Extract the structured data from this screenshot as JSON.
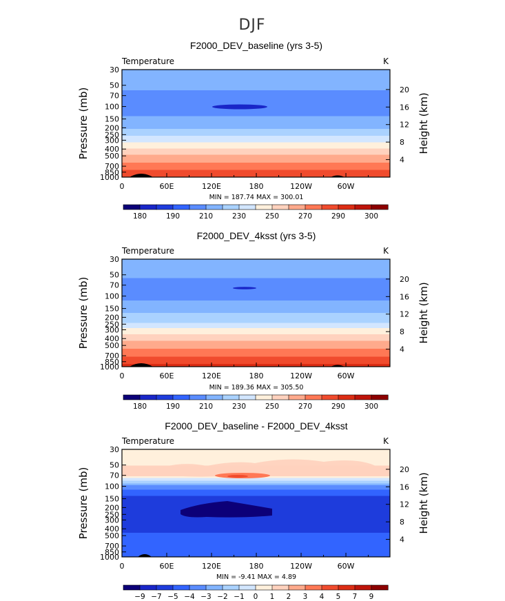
{
  "figure": {
    "suptitle": "DJF"
  },
  "chart_data": [
    {
      "type": "heatmap",
      "title": "F2000_DEV_baseline (yrs 3-5)",
      "left_label": "Temperature",
      "units": "K",
      "ylabel": "Pressure (mb)",
      "ylabel_right": "Height (km)",
      "x_ticks": [
        "0",
        "60E",
        "120E",
        "180",
        "120W",
        "60W"
      ],
      "xlim": [
        0,
        359
      ],
      "y_ticks": [
        "30",
        "50",
        "70",
        "100",
        "150",
        "200",
        "250",
        "300",
        "400",
        "500",
        "700",
        "850",
        "1000"
      ],
      "y_ticks_right": [
        "20",
        "16",
        "12",
        "8",
        "4"
      ],
      "ylim": [
        1000,
        30
      ],
      "y_scale": "log",
      "min_max_label": "MIN = 187.74   MAX = 300.01",
      "min": 187.74,
      "max": 300.01,
      "colorbar_labels": [
        "180",
        "190",
        "210",
        "230",
        "250",
        "270",
        "290",
        "300"
      ],
      "levels": [
        180,
        185,
        190,
        200,
        210,
        220,
        230,
        240,
        250,
        260,
        270,
        280,
        290,
        295,
        300
      ],
      "colors": [
        "#0c0078",
        "#1926c8",
        "#1e3cdc",
        "#3264ff",
        "#5a8cff",
        "#82b4ff",
        "#aad2ff",
        "#d2e6ff",
        "#fff0dc",
        "#ffd2be",
        "#ffaa8c",
        "#ff7855",
        "#f04b2d",
        "#dc2d14",
        "#be140a",
        "#8c0000"
      ],
      "profile": [
        {
          "p": 30,
          "v": 219
        },
        {
          "p": 50,
          "v": 213
        },
        {
          "p": 70,
          "v": 206
        },
        {
          "p": 100,
          "v": 204
        },
        {
          "p": 150,
          "v": 212
        },
        {
          "p": 200,
          "v": 219
        },
        {
          "p": 250,
          "v": 228
        },
        {
          "p": 300,
          "v": 238
        },
        {
          "p": 400,
          "v": 252
        },
        {
          "p": 500,
          "v": 262
        },
        {
          "p": 700,
          "v": 275
        },
        {
          "p": 850,
          "v": 283
        },
        {
          "p": 1000,
          "v": 290
        }
      ]
    },
    {
      "type": "heatmap",
      "title": "F2000_DEV_4ksst (yrs 3-5)",
      "left_label": "Temperature",
      "units": "K",
      "ylabel": "Pressure (mb)",
      "ylabel_right": "Height (km)",
      "x_ticks": [
        "0",
        "60E",
        "120E",
        "180",
        "120W",
        "60W"
      ],
      "xlim": [
        0,
        359
      ],
      "y_ticks": [
        "30",
        "50",
        "70",
        "100",
        "150",
        "200",
        "250",
        "300",
        "400",
        "500",
        "700",
        "850",
        "1000"
      ],
      "y_ticks_right": [
        "20",
        "16",
        "12",
        "8",
        "4"
      ],
      "ylim": [
        1000,
        30
      ],
      "y_scale": "log",
      "min_max_label": "MIN = 189.36   MAX = 305.50",
      "min": 189.36,
      "max": 305.5,
      "colorbar_labels": [
        "180",
        "190",
        "210",
        "230",
        "250",
        "270",
        "290",
        "300"
      ],
      "levels": [
        180,
        185,
        190,
        200,
        210,
        220,
        230,
        240,
        250,
        260,
        270,
        280,
        290,
        295,
        300
      ],
      "colors": [
        "#0c0078",
        "#1926c8",
        "#1e3cdc",
        "#3264ff",
        "#5a8cff",
        "#82b4ff",
        "#aad2ff",
        "#d2e6ff",
        "#fff0dc",
        "#ffd2be",
        "#ffaa8c",
        "#ff7855",
        "#f04b2d",
        "#dc2d14",
        "#be140a",
        "#8c0000"
      ],
      "profile": [
        {
          "p": 30,
          "v": 218
        },
        {
          "p": 50,
          "v": 212
        },
        {
          "p": 70,
          "v": 205
        },
        {
          "p": 100,
          "v": 207
        },
        {
          "p": 150,
          "v": 216
        },
        {
          "p": 200,
          "v": 224
        },
        {
          "p": 250,
          "v": 233
        },
        {
          "p": 300,
          "v": 243
        },
        {
          "p": 400,
          "v": 257
        },
        {
          "p": 500,
          "v": 267
        },
        {
          "p": 700,
          "v": 279
        },
        {
          "p": 850,
          "v": 287
        },
        {
          "p": 1000,
          "v": 294
        }
      ]
    },
    {
      "type": "heatmap",
      "title": "F2000_DEV_baseline - F2000_DEV_4ksst",
      "left_label": "Temperature",
      "units": "K",
      "ylabel": "Pressure (mb)",
      "ylabel_right": "Height (km)",
      "x_ticks": [
        "0",
        "60E",
        "120E",
        "180",
        "120W",
        "60W"
      ],
      "xlim": [
        0,
        359
      ],
      "y_ticks": [
        "30",
        "50",
        "70",
        "100",
        "150",
        "200",
        "250",
        "300",
        "400",
        "500",
        "700",
        "850",
        "1000"
      ],
      "y_ticks_right": [
        "20",
        "16",
        "12",
        "8",
        "4"
      ],
      "ylim": [
        1000,
        30
      ],
      "y_scale": "log",
      "min_max_label": "MIN =  -9.41   MAX =   4.89",
      "min": -9.41,
      "max": 4.89,
      "colorbar_labels": [
        "-9",
        "-7",
        "-5",
        "-4",
        "-3",
        "-2",
        "-1",
        "0",
        "1",
        "2",
        "3",
        "4",
        "5",
        "7",
        "9"
      ],
      "levels": [
        -9,
        -7,
        -5,
        -4,
        -3,
        -2,
        -1,
        0,
        1,
        2,
        3,
        4,
        5,
        7,
        9
      ],
      "colors": [
        "#0c0078",
        "#1926c8",
        "#1e3cdc",
        "#3264ff",
        "#5a8cff",
        "#82b4ff",
        "#aad2ff",
        "#d2e6ff",
        "#fff0dc",
        "#ffd2be",
        "#ffaa8c",
        "#ff7855",
        "#f04b2d",
        "#dc2d14",
        "#be140a",
        "#8c0000"
      ],
      "profile": [
        {
          "p": 30,
          "v": 0.5
        },
        {
          "p": 50,
          "v": 1.0
        },
        {
          "p": 70,
          "v": 1.2
        },
        {
          "p": 85,
          "v": -1.5
        },
        {
          "p": 100,
          "v": -3.5
        },
        {
          "p": 150,
          "v": -5.5
        },
        {
          "p": 200,
          "v": -6.5
        },
        {
          "p": 250,
          "v": -6.5
        },
        {
          "p": 300,
          "v": -6.0
        },
        {
          "p": 400,
          "v": -5.5
        },
        {
          "p": 500,
          "v": -4.5
        },
        {
          "p": 700,
          "v": -4.3
        },
        {
          "p": 850,
          "v": -4.2
        },
        {
          "p": 1000,
          "v": -4.0
        }
      ]
    }
  ]
}
